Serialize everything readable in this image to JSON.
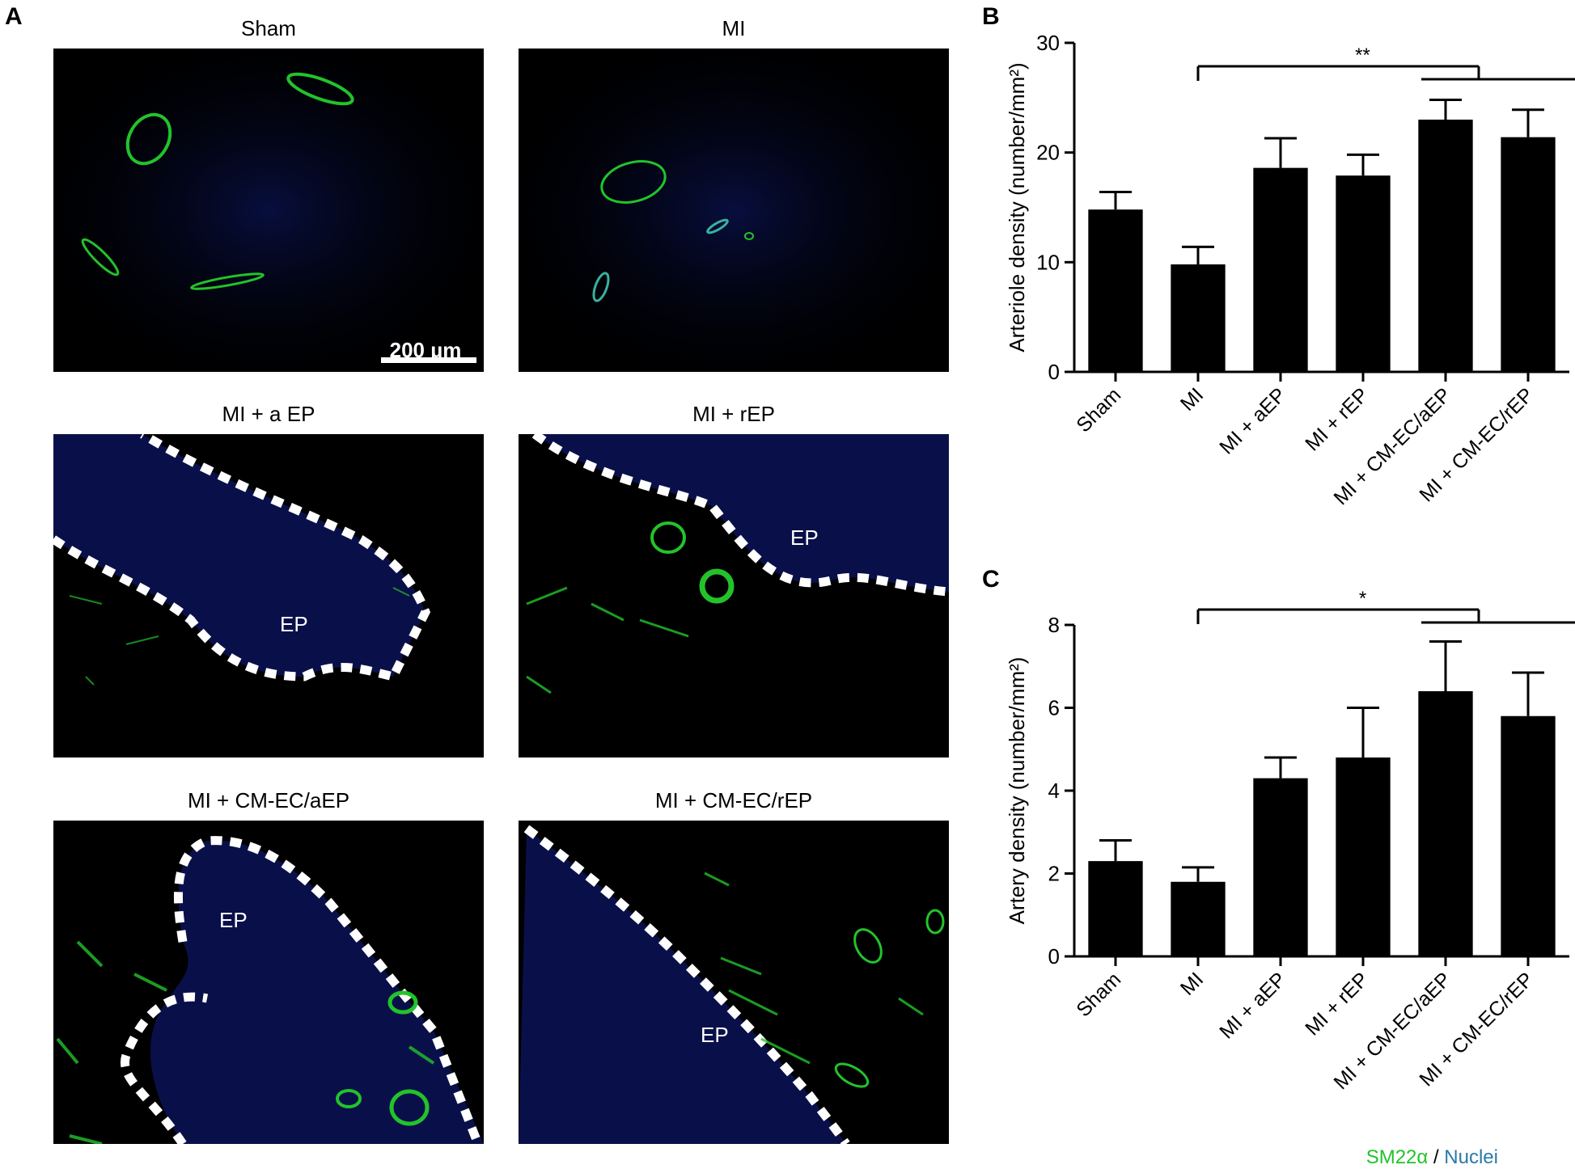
{
  "panels": {
    "a": {
      "letter": "A",
      "images": [
        {
          "title": "Sham",
          "ep_label": "",
          "scale_bar": "200 µm"
        },
        {
          "title": "MI",
          "ep_label": ""
        },
        {
          "title": "MI + a EP",
          "ep_label": "EP"
        },
        {
          "title": "MI + rEP",
          "ep_label": "EP"
        },
        {
          "title": "MI + CM-EC/aEP",
          "ep_label": "EP"
        },
        {
          "title": "MI + CM-EC/rEP",
          "ep_label": "EP"
        }
      ],
      "legend": {
        "green": "SM22α",
        "separator": " / ",
        "blue": "Nuclei"
      },
      "colors": {
        "stain_green": "#22c32a",
        "nuclei_blue": "#1a2fd0",
        "dashed_boundary": "#ffffff"
      }
    },
    "b": {
      "letter": "B"
    },
    "c": {
      "letter": "C"
    }
  },
  "chart_data": [
    {
      "id": "B",
      "type": "bar",
      "categories": [
        "Sham",
        "MI",
        "MI + aEP",
        "MI + rEP",
        "MI + CM-EC/aEP",
        "MI + CM-EC/rEP"
      ],
      "values": [
        14.8,
        9.8,
        18.6,
        17.9,
        23.0,
        21.4
      ],
      "errors": [
        1.6,
        1.6,
        2.7,
        1.9,
        1.8,
        2.5
      ],
      "ylabel": "Arteriole density (number/mm²)",
      "ylim": [
        0,
        30
      ],
      "yticks": [
        0,
        10,
        20,
        30
      ],
      "significance": "**",
      "bar_color": "#000000"
    },
    {
      "id": "C",
      "type": "bar",
      "categories": [
        "Sham",
        "MI",
        "MI + aEP",
        "MI + rEP",
        "MI + CM-EC/aEP",
        "MI + CM-EC/rEP"
      ],
      "values": [
        2.3,
        1.8,
        4.3,
        4.8,
        6.4,
        5.8
      ],
      "errors": [
        0.5,
        0.35,
        0.5,
        1.2,
        1.2,
        1.05
      ],
      "ylabel": "Artery density (number/mm²)",
      "ylim": [
        0,
        8
      ],
      "yticks": [
        0,
        2,
        4,
        6,
        8
      ],
      "significance": "*",
      "bar_color": "#000000"
    }
  ]
}
